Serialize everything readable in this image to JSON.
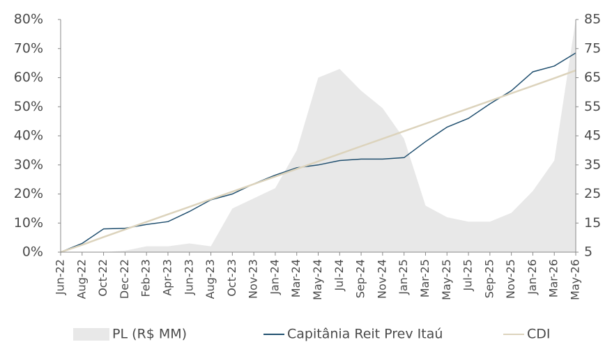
{
  "chart_data": {
    "type": "line",
    "categories": [
      "Jun-22",
      "Aug-22",
      "Oct-22",
      "Dec-22",
      "Feb-23",
      "Apr-23",
      "Jun-23",
      "Aug-23",
      "Oct-23",
      "Nov-23",
      "Jan-24",
      "Mar-24",
      "May-24",
      "Jul-24",
      "Sep-24",
      "Nov-24",
      "Jan-25",
      "Mar-25",
      "May-25",
      "Jul-25",
      "Sep-25",
      "Nov-25",
      "Jan-26",
      "Mar-26",
      "May-26"
    ],
    "series": [
      {
        "name": "PL (R$ MM)",
        "color": "#e8e8e8",
        "axis": "y2",
        "area": true,
        "values": [
          5,
          5,
          5,
          5.5,
          7,
          7,
          8,
          7,
          20,
          23.5,
          27,
          40,
          65,
          68,
          60.5,
          54.5,
          44,
          21,
          17,
          15.5,
          15.5,
          18.5,
          26,
          36.5,
          85
        ]
      },
      {
        "name": "Capitânia Reit Prev Itaú",
        "color": "#1f4e6e",
        "values": [
          0,
          3,
          8,
          8.2,
          9.5,
          10.5,
          14,
          18,
          20,
          23.5,
          26.5,
          29,
          30,
          31.5,
          32,
          32,
          32.5,
          38,
          43,
          46,
          51,
          55.5,
          62,
          64,
          68.5
        ]
      },
      {
        "name": "CDI",
        "color": "#dcd3bc",
        "values": [
          0,
          2.5,
          5.2,
          7.8,
          10.4,
          13,
          15.6,
          18.2,
          20.8,
          23.4,
          26,
          28.6,
          31.2,
          33.8,
          36.4,
          39,
          41.6,
          44.2,
          46.8,
          49.4,
          52,
          54.6,
          57.2,
          59.8,
          62.5
        ]
      }
    ],
    "ylim": [
      0,
      80
    ],
    "yticks": [
      {
        "value": 0,
        "label": "0%"
      },
      {
        "value": 10,
        "label": "10%"
      },
      {
        "value": 20,
        "label": "20%"
      },
      {
        "value": 30,
        "label": "30%"
      },
      {
        "value": 40,
        "label": "40%"
      },
      {
        "value": 50,
        "label": "50%"
      },
      {
        "value": 60,
        "label": "60%"
      },
      {
        "value": 70,
        "label": "70%"
      },
      {
        "value": 80,
        "label": "80%"
      }
    ],
    "y2lim": [
      5,
      85
    ],
    "y2ticks": [
      5,
      15,
      25,
      35,
      45,
      55,
      65,
      75,
      85
    ],
    "grid": false,
    "legend": "bottom"
  }
}
